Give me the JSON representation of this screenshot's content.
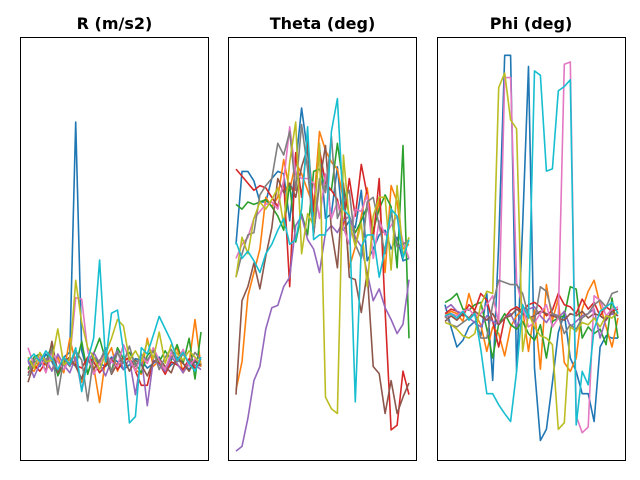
{
  "figure": {
    "colors": [
      "#1f77b4",
      "#ff7f0e",
      "#2ca02c",
      "#d62728",
      "#9467bd",
      "#8c564b",
      "#e377c2",
      "#7f7f7f",
      "#bcbd22",
      "#17becf"
    ]
  },
  "chart_data": [
    {
      "type": "line",
      "title": "R (m/s2)",
      "xlabel": "",
      "ylabel": "",
      "axes_ticks": "none",
      "grid": false,
      "xlim": [
        0,
        29
      ],
      "ylim": [
        -6,
        21
      ],
      "series": [
        {
          "values": [
            0.2,
            0.4,
            0.0,
            0.8,
            0.3,
            -0.5,
            0.6,
            0.9,
            15.6,
            1.0,
            -0.4,
            0.5,
            0.2,
            0.0,
            0.6,
            0.3,
            -0.2,
            0.1,
            0.5,
            0.4,
            -0.1,
            0.2,
            0.6,
            -0.3,
            0.1,
            0.4,
            0.2,
            -0.2,
            0.3,
            0.0
          ]
        },
        {
          "values": [
            0.0,
            -0.3,
            0.4,
            0.1,
            -0.2,
            0.6,
            -0.4,
            1.8,
            0.2,
            -1.0,
            0.4,
            0.0,
            -2.3,
            0.5,
            1.2,
            -0.3,
            0.6,
            0.4,
            -0.2,
            -0.5,
            1.8,
            0.0,
            0.4,
            -0.3,
            0.6,
            1.2,
            -0.4,
            0.2,
            3.0,
            0.0
          ]
        },
        {
          "values": [
            -0.2,
            0.6,
            0.8,
            0.3,
            1.4,
            -0.6,
            0.2,
            0.4,
            0.0,
            1.6,
            -0.5,
            0.8,
            1.8,
            0.4,
            -0.3,
            1.2,
            0.5,
            0.9,
            0.2,
            -0.4,
            0.7,
            1.1,
            0.3,
            1.0,
            0.4,
            1.4,
            0.2,
            1.8,
            -0.8,
            2.2
          ]
        },
        {
          "values": [
            -0.4,
            0.1,
            -0.3,
            0.3,
            0.4,
            -0.2,
            0.5,
            0.2,
            0.1,
            -0.1,
            0.6,
            0.3,
            -0.4,
            0.1,
            0.5,
            -0.2,
            0.3,
            0.6,
            -0.3,
            -1.2,
            -1.2,
            0.4,
            0.2,
            -0.5,
            0.3,
            0.1,
            -0.2,
            0.5,
            -0.1,
            0.2
          ]
        },
        {
          "values": [
            0.4,
            -0.7,
            0.2,
            0.5,
            -0.3,
            0.8,
            0.1,
            -0.4,
            0.6,
            -1.5,
            0.3,
            0.9,
            0.2,
            -0.6,
            0.4,
            1.0,
            -0.2,
            0.5,
            -1.8,
            0.6,
            -2.5,
            0.4,
            0.1,
            -0.3,
            0.6,
            0.2,
            -0.4,
            0.3,
            0.1,
            -0.2
          ]
        },
        {
          "values": [
            -1.0,
            0.2,
            0.5,
            -0.3,
            1.6,
            -0.4,
            0.3,
            0.6,
            0.0,
            -0.8,
            0.5,
            -0.2,
            0.4,
            0.8,
            -0.5,
            0.2,
            0.6,
            -0.3,
            0.4,
            0.1,
            -0.6,
            0.3,
            0.5,
            0.0,
            -0.4,
            0.6,
            0.2,
            -0.3,
            0.4,
            0.1
          ]
        },
        {
          "values": [
            1.2,
            0.1,
            0.6,
            -0.4,
            0.9,
            0.3,
            -0.2,
            0.5,
            4.4,
            4.3,
            1.0,
            -0.5,
            0.2,
            0.8,
            0.3,
            0.0,
            1.4,
            0.5,
            -0.3,
            0.7,
            0.2,
            1.2,
            0.4,
            -0.2,
            0.9,
            0.3,
            1.1,
            0.0,
            0.5,
            0.2
          ]
        },
        {
          "values": [
            -0.6,
            0.4,
            0.8,
            0.2,
            1.1,
            -1.8,
            0.5,
            0.0,
            1.0,
            0.4,
            -2.2,
            0.6,
            0.3,
            1.2,
            -0.4,
            0.9,
            0.2,
            1.3,
            0.0,
            0.8,
            0.4,
            1.0,
            -0.2,
            0.6,
            1.1,
            0.3,
            0.8,
            0.2,
            0.9,
            0.4
          ]
        },
        {
          "values": [
            0.6,
            -0.1,
            0.9,
            0.3,
            0.4,
            2.4,
            0.1,
            0.5,
            5.5,
            2.8,
            1.2,
            0.6,
            -0.2,
            0.8,
            1.8,
            3.0,
            2.6,
            0.4,
            1.0,
            0.3,
            1.6,
            0.5,
            2.2,
            0.2,
            1.4,
            0.8,
            0.4,
            1.0,
            0.6,
            0.2
          ]
        },
        {
          "values": [
            0.4,
            0.8,
            0.3,
            1.0,
            0.5,
            -0.2,
            0.6,
            0.1,
            1.2,
            -1.6,
            0.4,
            1.8,
            6.8,
            0.3,
            3.4,
            3.6,
            1.0,
            -3.6,
            -3.2,
            1.2,
            0.8,
            2.0,
            3.2,
            2.4,
            1.6,
            0.4,
            0.9,
            0.2,
            -0.3,
            0.6
          ]
        }
      ]
    },
    {
      "type": "line",
      "title": "Theta (deg)",
      "xlabel": "",
      "ylabel": "",
      "axes_ticks": "none",
      "grid": false,
      "xlim": [
        0,
        29
      ],
      "ylim": [
        0,
        180
      ],
      "series": [
        {
          "values": [
            92,
            123,
            123,
            119,
            110,
            110,
            120,
            123,
            122,
            102,
            126,
            150,
            131,
            104,
            134,
            103,
            105,
            125,
            98,
            102,
            99,
            115,
            85,
            90,
            96,
            98,
            90,
            95,
            85,
            86
          ]
        },
        {
          "values": [
            30,
            42,
            70,
            80,
            90,
            112,
            108,
            112,
            128,
            115,
            127,
            122,
            115,
            108,
            140,
            132,
            127,
            124,
            111,
            82,
            91,
            104,
            116,
            96,
            111,
            80,
            117,
            110,
            90,
            92
          ]
        },
        {
          "values": [
            109,
            107,
            110,
            109,
            110,
            111,
            108,
            104,
            98,
            118,
            93,
            105,
            96,
            123,
            124,
            116,
            115,
            135,
            117,
            104,
            97,
            102,
            108,
            98,
            107,
            113,
            108,
            82,
            134,
            52
          ]
        },
        {
          "values": [
            124,
            121,
            118,
            115,
            117,
            116,
            112,
            108,
            119,
            74,
            131,
            112,
            137,
            106,
            132,
            118,
            115,
            111,
            100,
            120,
            104,
            126,
            113,
            94,
            120,
            64,
            13,
            15,
            38,
            28
          ]
        },
        {
          "values": [
            4,
            6,
            18,
            34,
            40,
            56,
            65,
            66,
            74,
            78,
            100,
            104,
            94,
            90,
            80,
            97,
            100,
            97,
            102,
            104,
            95,
            91,
            80,
            68,
            73,
            65,
            60,
            54,
            58,
            77
          ]
        },
        {
          "values": [
            28,
            68,
            74,
            84,
            73,
            87,
            99,
            120,
            114,
            118,
            112,
            125,
            133,
            96,
            118,
            134,
            98,
            82,
            118,
            78,
            77,
            63,
            80,
            40,
            37,
            20,
            34,
            20,
            27,
            33
          ]
        },
        {
          "values": [
            86,
            92,
            95,
            103,
            106,
            109,
            110,
            107,
            119,
            142,
            122,
            120,
            120,
            118,
            103,
            122,
            103,
            110,
            99,
            92,
            107,
            106,
            113,
            86,
            102,
            96,
            100,
            104,
            93,
            86
          ]
        },
        {
          "values": [
            78,
            88,
            96,
            97,
            113,
            117,
            120,
            135,
            130,
            140,
            115,
            143,
            124,
            96,
            120,
            114,
            138,
            103,
            110,
            115,
            92,
            86,
            110,
            112,
            100,
            88,
            106,
            91,
            92,
            94
          ]
        },
        {
          "values": [
            78,
            95,
            88,
            103,
            110,
            107,
            111,
            116,
            100,
            127,
            144,
            88,
            105,
            100,
            135,
            27,
            22,
            20,
            130,
            102,
            91,
            101,
            74,
            104,
            112,
            112,
            81,
            117,
            87,
            95
          ]
        },
        {
          "values": [
            93,
            86,
            89,
            85,
            80,
            88,
            92,
            98,
            103,
            92,
            94,
            107,
            142,
            94,
            96,
            96,
            140,
            154,
            107,
            104,
            25,
            91,
            96,
            96,
            78,
            90,
            107,
            104,
            86,
            94
          ]
        }
      ]
    },
    {
      "type": "line",
      "title": "Phi (deg)",
      "xlabel": "",
      "ylabel": "",
      "axes_ticks": "none",
      "grid": false,
      "xlim": [
        0,
        29
      ],
      "ylim": [
        -180,
        200
      ],
      "series": [
        {
          "values": [
            -40,
            -60,
            -78,
            -72,
            -60,
            -55,
            -68,
            -30,
            -108,
            15,
            184,
            184,
            -100,
            30,
            174,
            -97,
            -162,
            -152,
            -110,
            -65,
            -48,
            -88,
            -100,
            -120,
            -120,
            -145,
            -78,
            -68,
            -70,
            -70
          ]
        },
        {
          "values": [
            -50,
            -46,
            -48,
            -55,
            -30,
            -48,
            -58,
            -82,
            -60,
            -66,
            -86,
            -60,
            -50,
            -44,
            -82,
            -45,
            -98,
            -22,
            -54,
            -35,
            -92,
            -100,
            -88,
            -44,
            -28,
            -18,
            -40,
            -60,
            -78,
            -52
          ]
        },
        {
          "values": [
            -38,
            -35,
            -30,
            -44,
            -45,
            -40,
            -38,
            -62,
            -88,
            -57,
            -48,
            -58,
            -62,
            -55,
            -66,
            -72,
            -58,
            -88,
            -55,
            -52,
            -50,
            -24,
            -26,
            -70,
            -60,
            -66,
            -62,
            -76,
            -34,
            -70
          ]
        },
        {
          "values": [
            -48,
            -44,
            -46,
            -50,
            -40,
            -45,
            -30,
            -36,
            -55,
            -78,
            -52,
            -45,
            -42,
            -46,
            -40,
            -38,
            -42,
            -50,
            -45,
            -30,
            -40,
            -42,
            -48,
            -35,
            -44,
            -38,
            -50,
            -42,
            -46,
            -44
          ]
        },
        {
          "values": [
            -44,
            -40,
            -46,
            -48,
            -52,
            -56,
            -60,
            -50,
            -55,
            -58,
            -52,
            -48,
            -60,
            -46,
            -44,
            -42,
            -50,
            -56,
            -48,
            -52,
            -46,
            -60,
            -55,
            -50,
            -48,
            -44,
            -70,
            -52,
            -48,
            -50
          ]
        },
        {
          "values": [
            -55,
            -50,
            -54,
            -48,
            -52,
            -46,
            -50,
            -54,
            -48,
            -58,
            -52,
            -50,
            -44,
            -48,
            -52,
            -50,
            -46,
            -48,
            -50,
            -52,
            -54,
            -48,
            -50,
            -46,
            -52,
            -48,
            -50,
            -54,
            -46,
            -50
          ]
        },
        {
          "values": [
            -52,
            -48,
            -50,
            -46,
            -44,
            -50,
            -48,
            -40,
            -32,
            -56,
            164,
            164,
            -20,
            -42,
            -60,
            -56,
            -48,
            -40,
            -60,
            -52,
            176,
            178,
            -140,
            -155,
            -150,
            -32,
            -36,
            -50,
            -44,
            -42
          ]
        },
        {
          "values": [
            -50,
            -58,
            -60,
            -56,
            -52,
            -48,
            -70,
            -70,
            -40,
            -18,
            -20,
            -22,
            -22,
            -30,
            -50,
            -55,
            -24,
            -28,
            -48,
            -50,
            -66,
            -58,
            -62,
            -52,
            -48,
            -40,
            -36,
            -42,
            -30,
            -28
          ]
        },
        {
          "values": [
            -56,
            -58,
            -62,
            -68,
            -70,
            -66,
            -40,
            -28,
            -30,
            155,
            168,
            126,
            118,
            -82,
            -48,
            -60,
            -68,
            -70,
            -76,
            -152,
            -146,
            -60,
            -64,
            -56,
            -58,
            -52,
            -60,
            -50,
            -52,
            -46
          ]
        },
        {
          "values": [
            -50,
            -48,
            -52,
            -46,
            -54,
            -48,
            -80,
            -120,
            -120,
            -130,
            -138,
            -145,
            -100,
            -40,
            -52,
            170,
            166,
            80,
            82,
            152,
            156,
            162,
            -148,
            -100,
            -112,
            -62,
            -46,
            -42,
            -38,
            -48
          ]
        }
      ]
    }
  ]
}
